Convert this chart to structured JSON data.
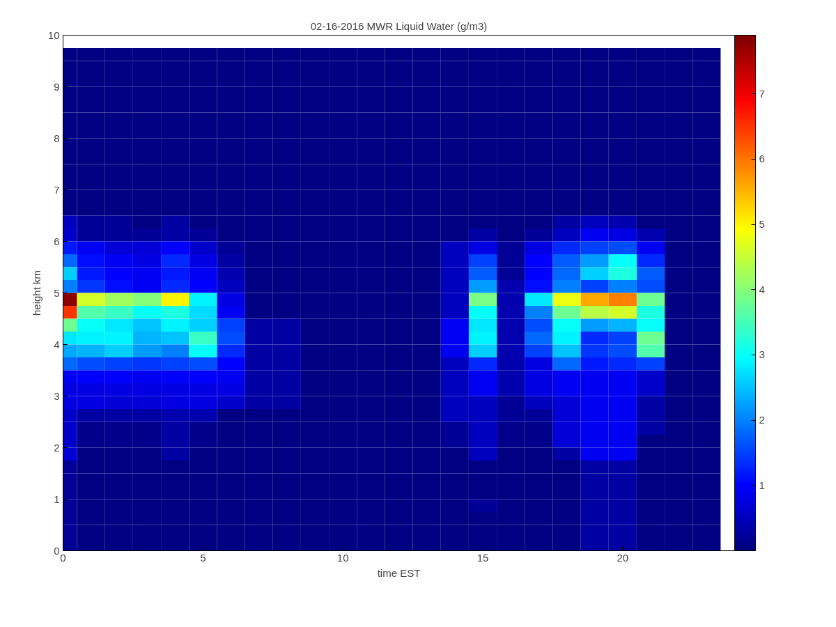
{
  "chart_data": {
    "type": "heatmap",
    "title": "02-16-2016 MWR Liquid Water (g/m3)",
    "xlabel": "time EST",
    "ylabel": "height km",
    "x": [
      0,
      1,
      2,
      3,
      4,
      5,
      6,
      7,
      8,
      9,
      10,
      11,
      12,
      13,
      14,
      15,
      16,
      17,
      18,
      19,
      20,
      21,
      22,
      23
    ],
    "y": [
      9.625,
      9.375,
      9.125,
      8.875,
      8.625,
      8.375,
      8.125,
      7.875,
      7.625,
      7.375,
      7.125,
      6.875,
      6.625,
      6.375,
      6.125,
      5.875,
      5.625,
      5.375,
      5.125,
      4.875,
      4.625,
      4.375,
      4.125,
      3.875,
      3.625,
      3.375,
      3.125,
      2.875,
      2.625,
      2.375,
      2.125,
      1.875,
      1.625,
      1.375,
      1.125,
      0.875,
      0.625,
      0.375,
      0.125
    ],
    "xlim": [
      0,
      24
    ],
    "ylim": [
      0,
      10
    ],
    "xticks": [
      0,
      5,
      10,
      15,
      20
    ],
    "yticks": [
      0,
      1,
      2,
      3,
      4,
      5,
      6,
      7,
      8,
      9,
      10
    ],
    "clim": [
      0,
      7.9
    ],
    "cticks": [
      1,
      2,
      3,
      4,
      5,
      6,
      7
    ],
    "grid": false,
    "cells": [
      [
        0.05,
        0.05,
        0.05,
        0.05,
        0.05,
        0.05,
        0.05,
        0.05,
        0.05,
        0.05,
        0.05,
        0.05,
        0.05,
        0.05,
        0.05,
        0.05,
        0.05,
        0.05,
        0.05,
        0.05,
        0.05,
        0.05,
        0.05,
        0.05
      ],
      [
        0.05,
        0.05,
        0.05,
        0.05,
        0.05,
        0.05,
        0.05,
        0.05,
        0.05,
        0.05,
        0.05,
        0.05,
        0.05,
        0.05,
        0.05,
        0.05,
        0.05,
        0.05,
        0.05,
        0.05,
        0.05,
        0.05,
        0.05,
        0.05
      ],
      [
        0.05,
        0.05,
        0.05,
        0.05,
        0.05,
        0.05,
        0.05,
        0.05,
        0.05,
        0.05,
        0.05,
        0.05,
        0.05,
        0.05,
        0.05,
        0.05,
        0.05,
        0.05,
        0.05,
        0.05,
        0.05,
        0.05,
        0.05,
        0.05
      ],
      [
        0.05,
        0.05,
        0.05,
        0.05,
        0.05,
        0.05,
        0.05,
        0.05,
        0.05,
        0.05,
        0.05,
        0.05,
        0.05,
        0.05,
        0.05,
        0.05,
        0.05,
        0.05,
        0.05,
        0.05,
        0.05,
        0.05,
        0.05,
        0.05
      ],
      [
        0.05,
        0.05,
        0.05,
        0.05,
        0.05,
        0.05,
        0.05,
        0.05,
        0.05,
        0.05,
        0.05,
        0.05,
        0.05,
        0.05,
        0.05,
        0.05,
        0.05,
        0.05,
        0.05,
        0.05,
        0.05,
        0.05,
        0.05,
        0.05
      ],
      [
        0.05,
        0.05,
        0.05,
        0.05,
        0.05,
        0.05,
        0.05,
        0.05,
        0.05,
        0.05,
        0.05,
        0.05,
        0.05,
        0.05,
        0.05,
        0.05,
        0.05,
        0.05,
        0.05,
        0.05,
        0.05,
        0.05,
        0.05,
        0.05
      ],
      [
        0.05,
        0.05,
        0.05,
        0.05,
        0.05,
        0.05,
        0.05,
        0.05,
        0.05,
        0.05,
        0.05,
        0.05,
        0.05,
        0.05,
        0.05,
        0.05,
        0.05,
        0.05,
        0.05,
        0.05,
        0.05,
        0.05,
        0.05,
        0.05
      ],
      [
        0.05,
        0.05,
        0.05,
        0.05,
        0.05,
        0.05,
        0.05,
        0.05,
        0.05,
        0.05,
        0.05,
        0.05,
        0.05,
        0.05,
        0.05,
        0.05,
        0.05,
        0.05,
        0.05,
        0.05,
        0.05,
        0.05,
        0.05,
        0.05
      ],
      [
        0.05,
        0.05,
        0.05,
        0.05,
        0.05,
        0.05,
        0.05,
        0.05,
        0.05,
        0.05,
        0.05,
        0.05,
        0.05,
        0.05,
        0.05,
        0.05,
        0.05,
        0.05,
        0.05,
        0.05,
        0.05,
        0.05,
        0.05,
        0.05
      ],
      [
        0.05,
        0.05,
        0.05,
        0.05,
        0.05,
        0.05,
        0.05,
        0.05,
        0.05,
        0.05,
        0.05,
        0.05,
        0.05,
        0.05,
        0.05,
        0.05,
        0.05,
        0.05,
        0.05,
        0.05,
        0.05,
        0.05,
        0.05,
        0.05
      ],
      [
        0.05,
        0.05,
        0.05,
        0.05,
        0.05,
        0.05,
        0.05,
        0.05,
        0.05,
        0.05,
        0.05,
        0.05,
        0.05,
        0.05,
        0.05,
        0.05,
        0.05,
        0.05,
        0.05,
        0.05,
        0.05,
        0.05,
        0.05,
        0.05
      ],
      [
        0.05,
        0.05,
        0.05,
        0.05,
        0.05,
        0.05,
        0.05,
        0.05,
        0.05,
        0.05,
        0.05,
        0.05,
        0.05,
        0.05,
        0.05,
        0.05,
        0.05,
        0.05,
        0.05,
        0.05,
        0.05,
        0.05,
        0.05,
        0.05
      ],
      [
        0.05,
        0.05,
        0.05,
        0.05,
        0.05,
        0.05,
        0.05,
        0.05,
        0.05,
        0.05,
        0.05,
        0.05,
        0.05,
        0.05,
        0.05,
        0.05,
        0.05,
        0.05,
        0.05,
        0.05,
        0.05,
        0.05,
        0.05,
        0.05
      ],
      [
        0.5,
        0.2,
        0.2,
        0.05,
        0.3,
        0.05,
        0.05,
        0.05,
        0.05,
        0.05,
        0.05,
        0.05,
        0.05,
        0.05,
        0.05,
        0.05,
        0.05,
        0.05,
        0.3,
        0.5,
        0.4,
        0.05,
        0.05,
        0.05
      ],
      [
        0.6,
        0.2,
        0.2,
        0.2,
        0.3,
        0.2,
        0.05,
        0.05,
        0.05,
        0.05,
        0.05,
        0.05,
        0.05,
        0.05,
        0.05,
        0.3,
        0.05,
        0.2,
        0.5,
        0.9,
        0.8,
        0.4,
        0.05,
        0.05
      ],
      [
        1.2,
        0.9,
        0.7,
        0.7,
        1.0,
        0.6,
        0.2,
        0.05,
        0.05,
        0.05,
        0.05,
        0.05,
        0.05,
        0.05,
        0.5,
        0.8,
        0.2,
        0.8,
        1.3,
        1.5,
        1.6,
        0.9,
        0.05,
        0.05
      ],
      [
        1.8,
        1.1,
        0.9,
        0.8,
        1.3,
        0.8,
        0.3,
        0.05,
        0.05,
        0.05,
        0.05,
        0.05,
        0.05,
        0.05,
        0.5,
        1.5,
        0.2,
        1.0,
        1.7,
        2.2,
        3.0,
        1.3,
        0.05,
        0.05
      ],
      [
        2.6,
        1.2,
        1.0,
        0.9,
        1.2,
        0.9,
        0.4,
        0.05,
        0.05,
        0.05,
        0.05,
        0.05,
        0.05,
        0.05,
        0.5,
        1.7,
        0.2,
        1.0,
        1.8,
        2.6,
        3.2,
        1.7,
        0.05,
        0.05
      ],
      [
        2.0,
        1.4,
        1.1,
        0.9,
        1.3,
        1.0,
        0.5,
        0.05,
        0.05,
        0.05,
        0.05,
        0.05,
        0.05,
        0.05,
        0.5,
        2.2,
        0.4,
        1.1,
        2.0,
        1.5,
        2.0,
        1.6,
        0.05,
        0.05
      ],
      [
        7.8,
        4.6,
        4.2,
        4.0,
        5.0,
        2.9,
        0.8,
        0.05,
        0.05,
        0.05,
        0.05,
        0.05,
        0.05,
        0.05,
        0.5,
        3.9,
        0.4,
        2.8,
        4.8,
        5.6,
        5.9,
        3.8,
        0.05,
        0.05
      ],
      [
        6.5,
        3.6,
        3.4,
        3.0,
        3.2,
        2.7,
        0.9,
        0.05,
        0.05,
        0.05,
        0.05,
        0.05,
        0.05,
        0.05,
        0.5,
        3.0,
        0.4,
        2.0,
        3.8,
        4.4,
        4.6,
        3.2,
        0.05,
        0.05
      ],
      [
        3.8,
        3.0,
        2.8,
        2.5,
        2.9,
        2.6,
        1.5,
        0.3,
        0.3,
        0.05,
        0.05,
        0.05,
        0.05,
        0.05,
        0.9,
        2.8,
        0.4,
        1.6,
        3.0,
        2.2,
        2.4,
        3.0,
        0.05,
        0.05
      ],
      [
        2.8,
        2.9,
        2.9,
        2.4,
        2.5,
        3.4,
        1.6,
        0.3,
        0.3,
        0.05,
        0.05,
        0.05,
        0.05,
        0.05,
        0.9,
        2.9,
        0.4,
        1.8,
        2.9,
        1.3,
        1.5,
        3.8,
        0.05,
        0.05
      ],
      [
        2.3,
        2.4,
        2.6,
        2.2,
        2.0,
        3.0,
        1.3,
        0.3,
        0.3,
        0.05,
        0.05,
        0.05,
        0.05,
        0.05,
        0.9,
        2.6,
        0.4,
        1.5,
        2.5,
        1.4,
        1.6,
        3.6,
        0.05,
        0.05
      ],
      [
        1.8,
        1.6,
        1.5,
        1.4,
        1.5,
        1.6,
        1.0,
        0.3,
        0.3,
        0.05,
        0.05,
        0.05,
        0.05,
        0.05,
        0.5,
        1.3,
        0.4,
        0.8,
        1.8,
        1.2,
        1.3,
        1.5,
        0.05,
        0.05
      ],
      [
        0.9,
        1.0,
        1.0,
        0.9,
        1.0,
        1.0,
        0.9,
        0.3,
        0.3,
        0.05,
        0.05,
        0.05,
        0.05,
        0.05,
        0.5,
        0.9,
        0.4,
        0.8,
        0.9,
        0.9,
        0.9,
        0.6,
        0.05,
        0.05
      ],
      [
        0.8,
        0.8,
        0.8,
        0.8,
        0.8,
        0.8,
        0.8,
        0.3,
        0.3,
        0.05,
        0.05,
        0.05,
        0.05,
        0.05,
        0.5,
        0.9,
        0.4,
        0.8,
        0.9,
        0.9,
        0.9,
        0.6,
        0.05,
        0.05
      ],
      [
        0.8,
        0.8,
        0.7,
        0.7,
        0.8,
        0.8,
        0.6,
        0.3,
        0.3,
        0.05,
        0.05,
        0.05,
        0.05,
        0.05,
        0.5,
        0.5,
        0.2,
        0.5,
        0.7,
        0.9,
        0.9,
        0.3,
        0.05,
        0.05
      ],
      [
        0.6,
        0.3,
        0.3,
        0.3,
        0.4,
        0.4,
        0.05,
        0.05,
        0.05,
        0.05,
        0.05,
        0.05,
        0.05,
        0.05,
        0.5,
        0.5,
        0.2,
        0.2,
        0.7,
        0.9,
        0.9,
        0.3,
        0.05,
        0.05
      ],
      [
        0.6,
        0.1,
        0.1,
        0.1,
        0.3,
        0.1,
        0.05,
        0.05,
        0.05,
        0.05,
        0.05,
        0.05,
        0.05,
        0.05,
        0.2,
        0.5,
        0.1,
        0.1,
        0.7,
        0.9,
        0.9,
        0.3,
        0.05,
        0.05
      ],
      [
        0.6,
        0.1,
        0.1,
        0.1,
        0.3,
        0.1,
        0.05,
        0.05,
        0.05,
        0.05,
        0.05,
        0.05,
        0.05,
        0.05,
        0.2,
        0.5,
        0.1,
        0.1,
        0.7,
        0.9,
        0.9,
        0.05,
        0.05,
        0.05
      ],
      [
        0.7,
        0.05,
        0.05,
        0.05,
        0.3,
        0.05,
        0.05,
        0.05,
        0.05,
        0.05,
        0.05,
        0.05,
        0.05,
        0.05,
        0.05,
        0.5,
        0.05,
        0.05,
        0.3,
        0.9,
        0.9,
        0.05,
        0.05,
        0.05
      ],
      [
        0.2,
        0.05,
        0.05,
        0.05,
        0.05,
        0.05,
        0.05,
        0.05,
        0.05,
        0.05,
        0.05,
        0.05,
        0.05,
        0.05,
        0.05,
        0.05,
        0.05,
        0.05,
        0.05,
        0.3,
        0.3,
        0.05,
        0.05,
        0.05
      ],
      [
        0.2,
        0.05,
        0.05,
        0.05,
        0.05,
        0.05,
        0.05,
        0.05,
        0.05,
        0.05,
        0.05,
        0.05,
        0.05,
        0.05,
        0.05,
        0.05,
        0.05,
        0.05,
        0.05,
        0.3,
        0.3,
        0.05,
        0.05,
        0.05
      ],
      [
        0.2,
        0.05,
        0.05,
        0.05,
        0.05,
        0.05,
        0.05,
        0.05,
        0.05,
        0.05,
        0.05,
        0.05,
        0.05,
        0.05,
        0.05,
        0.05,
        0.05,
        0.05,
        0.05,
        0.3,
        0.3,
        0.05,
        0.05,
        0.05
      ],
      [
        0.2,
        0.05,
        0.05,
        0.05,
        0.05,
        0.05,
        0.05,
        0.05,
        0.05,
        0.05,
        0.05,
        0.05,
        0.05,
        0.05,
        0.05,
        0.2,
        0.05,
        0.05,
        0.05,
        0.3,
        0.3,
        0.05,
        0.05,
        0.05
      ],
      [
        0.2,
        0.05,
        0.05,
        0.05,
        0.05,
        0.05,
        0.05,
        0.05,
        0.05,
        0.05,
        0.05,
        0.05,
        0.05,
        0.05,
        0.05,
        0.05,
        0.05,
        0.05,
        0.05,
        0.3,
        0.3,
        0.05,
        0.05,
        0.05
      ],
      [
        0.2,
        0.05,
        0.05,
        0.05,
        0.05,
        0.05,
        0.05,
        0.05,
        0.05,
        0.05,
        0.05,
        0.05,
        0.05,
        0.05,
        0.05,
        0.05,
        0.05,
        0.05,
        0.05,
        0.3,
        0.3,
        0.05,
        0.05,
        0.05
      ],
      [
        0.2,
        0.05,
        0.05,
        0.05,
        0.05,
        0.05,
        0.05,
        0.05,
        0.05,
        0.05,
        0.05,
        0.05,
        0.05,
        0.05,
        0.05,
        0.05,
        0.05,
        0.05,
        0.05,
        0.3,
        0.3,
        0.05,
        0.05,
        0.05
      ]
    ]
  }
}
